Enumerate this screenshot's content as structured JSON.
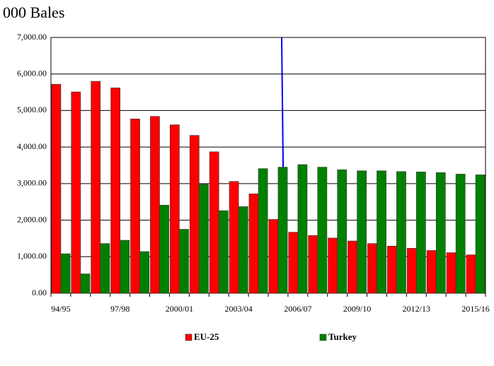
{
  "chart_data": {
    "type": "bar",
    "title": "000 Bales",
    "categories": [
      "94/95",
      null,
      null,
      "97/98",
      null,
      null,
      "2000/01",
      null,
      null,
      "2003/04",
      null,
      null,
      "2006/07",
      null,
      null,
      "2009/10",
      null,
      null,
      "2012/13",
      null,
      null,
      "2015/16"
    ],
    "series": [
      {
        "name": "EU-25",
        "color": "#ff0000",
        "values": [
          5720,
          5510,
          5800,
          5620,
          4770,
          4840,
          4610,
          4320,
          3870,
          3060,
          2720,
          2020,
          1670,
          1580,
          1510,
          1430,
          1360,
          1290,
          1230,
          1170,
          1110,
          1050
        ]
      },
      {
        "name": "Turkey",
        "color": "#008000",
        "values": [
          1080,
          530,
          1360,
          1450,
          1140,
          2410,
          1750,
          2980,
          2260,
          2370,
          3410,
          3450,
          3520,
          3450,
          3380,
          3350,
          3350,
          3330,
          3320,
          3300,
          3260,
          3240
        ]
      }
    ],
    "ylim": [
      0,
      7000
    ],
    "yticks": [
      {
        "value": 0,
        "label": "0.00"
      },
      {
        "value": 1000,
        "label": "1,000.00"
      },
      {
        "value": 2000,
        "label": "2,000.00"
      },
      {
        "value": 3000,
        "label": "3,000.00"
      },
      {
        "value": 4000,
        "label": "4,000.00"
      },
      {
        "value": 5000,
        "label": "5,000.00"
      },
      {
        "value": 6000,
        "label": "6,000.00"
      },
      {
        "value": 7000,
        "label": "7,000.00"
      }
    ],
    "grid": true
  }
}
